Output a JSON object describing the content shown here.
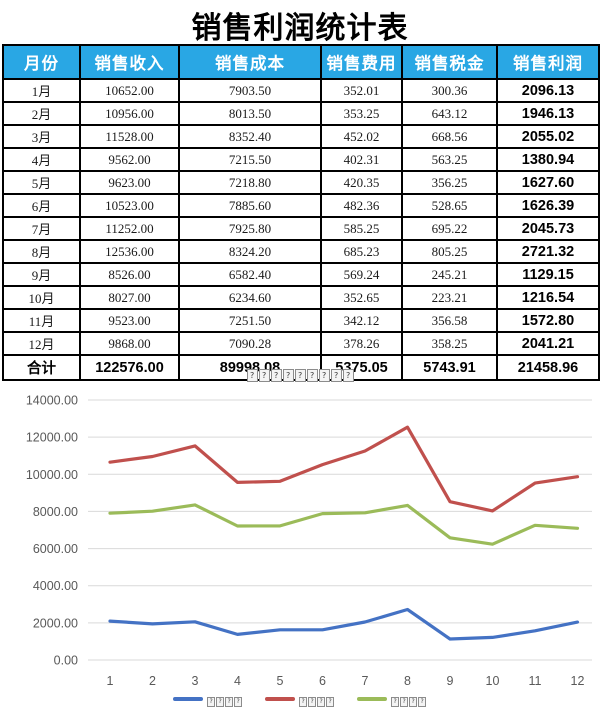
{
  "page": {
    "title": "销售利润统计表"
  },
  "colors": {
    "header_bg": "#29A7E4",
    "header_text": "#FFFFFF",
    "table_border": "#000000",
    "grid_line": "#D9D9D9",
    "axis_text": "#595959",
    "series_blue": "#4472C4",
    "series_red": "#C0504D",
    "series_green": "#9BBB59"
  },
  "table": {
    "headers": [
      "月份",
      "销售收入",
      "销售成本",
      "销售费用",
      "销售税金",
      "销售利润"
    ],
    "rows": [
      [
        "1月",
        "10652.00",
        "7903.50",
        "352.01",
        "300.36",
        "2096.13"
      ],
      [
        "2月",
        "10956.00",
        "8013.50",
        "353.25",
        "643.12",
        "1946.13"
      ],
      [
        "3月",
        "11528.00",
        "8352.40",
        "452.02",
        "668.56",
        "2055.02"
      ],
      [
        "4月",
        "9562.00",
        "7215.50",
        "402.31",
        "563.25",
        "1380.94"
      ],
      [
        "5月",
        "9623.00",
        "7218.80",
        "420.35",
        "356.25",
        "1627.60"
      ],
      [
        "6月",
        "10523.00",
        "7885.60",
        "482.36",
        "528.65",
        "1626.39"
      ],
      [
        "7月",
        "11252.00",
        "7925.80",
        "585.25",
        "695.22",
        "2045.73"
      ],
      [
        "8月",
        "12536.00",
        "8324.20",
        "685.23",
        "805.25",
        "2721.32"
      ],
      [
        "9月",
        "8526.00",
        "6582.40",
        "569.24",
        "245.21",
        "1129.15"
      ],
      [
        "10月",
        "8027.00",
        "6234.60",
        "352.65",
        "223.21",
        "1216.54"
      ],
      [
        "11月",
        "9523.00",
        "7251.50",
        "342.12",
        "356.58",
        "1572.80"
      ],
      [
        "12月",
        "9868.00",
        "7090.28",
        "378.26",
        "358.25",
        "2041.21"
      ]
    ],
    "total_row": [
      "合计",
      "122576.00",
      "89998.08",
      "5375.05",
      "5743.91",
      "21458.96"
    ]
  },
  "chart_data": {
    "type": "line",
    "title_missing_glyph_boxes": 9,
    "x_labels": [
      "1",
      "2",
      "3",
      "4",
      "5",
      "6",
      "7",
      "8",
      "9",
      "10",
      "11",
      "12"
    ],
    "ytick_labels": [
      "0.00",
      "2000.00",
      "4000.00",
      "6000.00",
      "8000.00",
      "10000.00",
      "12000.00",
      "14000.00"
    ],
    "ylim": [
      0,
      14000
    ],
    "ytick_step": 2000,
    "grid": true,
    "legend_position": "bottom",
    "series": [
      {
        "key": "profit",
        "legend_missing_glyph_boxes": 4,
        "color": "#4472C4",
        "values": [
          2096.13,
          1946.13,
          2055.02,
          1380.94,
          1627.6,
          1626.39,
          2045.73,
          2721.32,
          1129.15,
          1216.54,
          1572.8,
          2041.21
        ]
      },
      {
        "key": "revenue",
        "legend_missing_glyph_boxes": 4,
        "color": "#C0504D",
        "values": [
          10652.0,
          10956.0,
          11528.0,
          9562.0,
          9623.0,
          10523.0,
          11252.0,
          12536.0,
          8526.0,
          8027.0,
          9523.0,
          9868.0
        ]
      },
      {
        "key": "cost",
        "legend_missing_glyph_boxes": 4,
        "color": "#9BBB59",
        "values": [
          7903.5,
          8013.5,
          8352.4,
          7215.5,
          7218.8,
          7885.6,
          7925.8,
          8324.2,
          6582.4,
          6234.6,
          7251.5,
          7090.28
        ]
      }
    ]
  }
}
